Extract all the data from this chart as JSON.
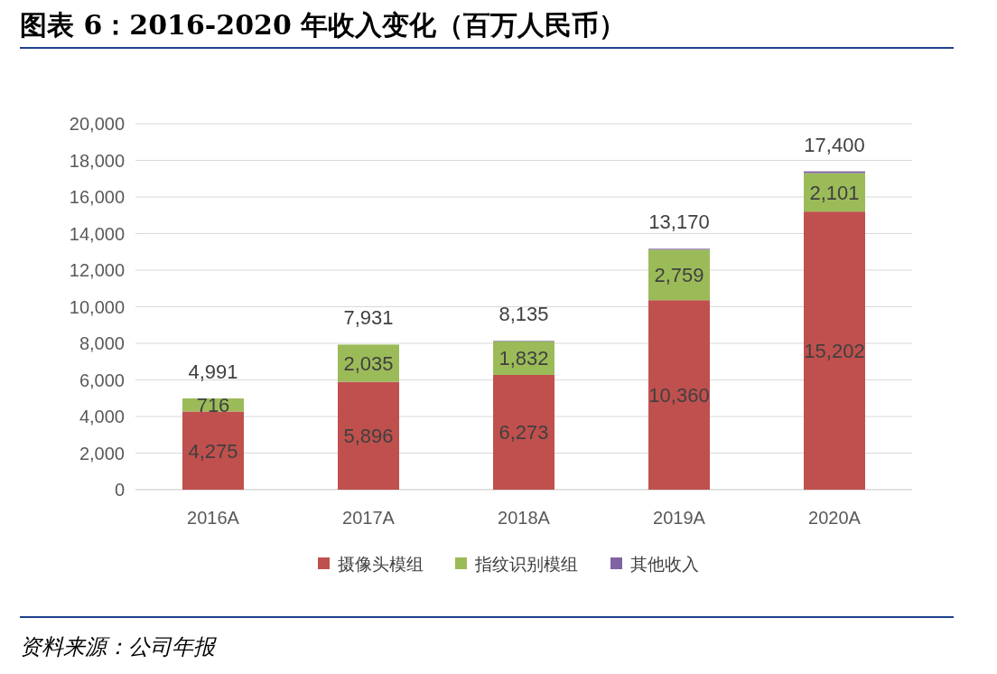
{
  "chart_data": {
    "type": "bar",
    "title": "图表 6：2016-2020 年收入变化（百万人民币）",
    "categories": [
      "2016A",
      "2017A",
      "2018A",
      "2019A",
      "2020A"
    ],
    "series": [
      {
        "name": "摄像头模组",
        "color": "#c0504d",
        "values": [
          4275,
          5896,
          6273,
          10360,
          15202
        ],
        "value_labels": [
          "4,275",
          "5,896",
          "6,273",
          "10,360",
          "15,202"
        ]
      },
      {
        "name": "指纹识别模组",
        "color": "#9bbb59",
        "values": [
          716,
          2035,
          1832,
          2759,
          2101
        ],
        "value_labels": [
          "716",
          "2,035",
          "1,832",
          "2,759",
          "2,101"
        ]
      },
      {
        "name": "其他收入",
        "color": "#8064a2",
        "values": [
          0,
          0,
          30,
          51,
          97
        ]
      }
    ],
    "stacked": true,
    "totals": [
      "4,991",
      "7,931",
      "8,135",
      "13,170",
      "17,400"
    ],
    "ylim": [
      0,
      20000
    ],
    "yticks": [
      0,
      {
        "value": 2000,
        "label": "2,000"
      },
      {
        "value": 4000,
        "label": "4,000"
      },
      {
        "value": 6000,
        "label": "6,000"
      },
      {
        "value": 8000,
        "label": "8,000"
      },
      {
        "value": 10000,
        "label": "10,000"
      },
      {
        "value": 12000,
        "label": "12,000"
      },
      {
        "value": 14000,
        "label": "14,000"
      },
      {
        "value": 16000,
        "label": "16,000"
      },
      {
        "value": 18000,
        "label": "18,000"
      },
      {
        "value": 20000,
        "label": "20,000"
      }
    ],
    "grid": "y",
    "legend": "bottom",
    "annotations": [
      "资料来源：公司年报"
    ]
  }
}
